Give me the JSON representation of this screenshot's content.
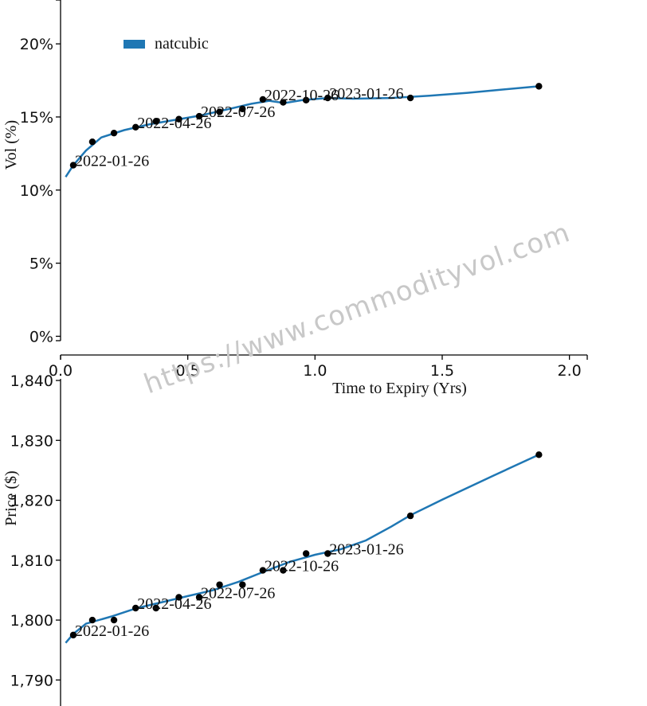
{
  "chart_data": [
    {
      "type": "line",
      "xlabel": "Time to Expiry (Yrs)",
      "ylabel": "Vol (%)",
      "xlim": [
        0,
        2.07
      ],
      "ylim": [
        -0.3,
        23
      ],
      "x_ticks": [
        0,
        0.5,
        1.0,
        1.5,
        2.0
      ],
      "x_tick_labels": [
        "0.0",
        "0.5",
        "1.0",
        "1.5",
        "2.0"
      ],
      "y_ticks": [
        0,
        5,
        10,
        15,
        20
      ],
      "y_tick_labels": [
        "0%",
        "5%",
        "10%",
        "15%",
        "20%"
      ],
      "legend": {
        "placement": "top-left",
        "entries": [
          {
            "name": "natcubic",
            "color": "#1f77b4"
          }
        ]
      },
      "series": [
        {
          "name": "natcubic",
          "color": "#1f77b4",
          "x": [
            0.02,
            0.05,
            0.1,
            0.16,
            0.25,
            0.35,
            0.45,
            0.55,
            0.65,
            0.75,
            0.82,
            0.88,
            0.95,
            1.05,
            1.15,
            1.3,
            1.45,
            1.6,
            1.75,
            1.88
          ],
          "y": [
            10.9,
            11.7,
            12.7,
            13.6,
            14.1,
            14.5,
            14.8,
            15.1,
            15.5,
            15.9,
            16.1,
            15.95,
            16.15,
            16.3,
            16.25,
            16.3,
            16.45,
            16.65,
            16.9,
            17.1
          ]
        }
      ],
      "points": {
        "x": [
          0.05,
          0.125,
          0.21,
          0.295,
          0.375,
          0.465,
          0.545,
          0.625,
          0.715,
          0.795,
          0.875,
          0.965,
          1.05,
          1.375,
          1.88
        ],
        "y": [
          11.7,
          13.3,
          13.9,
          14.3,
          14.7,
          14.85,
          15.05,
          15.35,
          15.55,
          16.2,
          16.0,
          16.15,
          16.3,
          16.3,
          17.1
        ]
      },
      "annotations": [
        {
          "text": "2022-01-26",
          "x": 0.05,
          "y": 11.7
        },
        {
          "text": "2022-04-26",
          "x": 0.295,
          "y": 14.3
        },
        {
          "text": "2022-07-26",
          "x": 0.545,
          "y": 15.05
        },
        {
          "text": "2022-10-26",
          "x": 0.795,
          "y": 16.2
        },
        {
          "text": "2023-01-26",
          "x": 1.05,
          "y": 16.3
        }
      ]
    },
    {
      "type": "line",
      "xlabel": "",
      "ylabel": "Price ($)",
      "xlim": [
        0,
        2.07
      ],
      "ylim": [
        1783,
        1840
      ],
      "y_ticks": [
        1790,
        1800,
        1810,
        1820,
        1830,
        1840
      ],
      "y_tick_labels": [
        "1,790",
        "1,800",
        "1,810",
        "1,820",
        "1,830",
        "1,840"
      ],
      "series": [
        {
          "color": "#1f77b4",
          "x": [
            0.02,
            0.05,
            0.1,
            0.2,
            0.3,
            0.4,
            0.5,
            0.6,
            0.7,
            0.8,
            0.9,
            1.0,
            1.1,
            1.2,
            1.3,
            1.375,
            1.5,
            1.7,
            1.88
          ],
          "y": [
            1796.2,
            1797.7,
            1799.4,
            1800.6,
            1802.0,
            1803.0,
            1804.0,
            1805.0,
            1806.4,
            1808.1,
            1809.7,
            1810.9,
            1811.8,
            1813.3,
            1815.6,
            1817.5,
            1820.1,
            1824.1,
            1827.6
          ]
        }
      ],
      "points": {
        "x": [
          0.05,
          0.125,
          0.21,
          0.295,
          0.375,
          0.465,
          0.545,
          0.625,
          0.715,
          0.795,
          0.875,
          0.965,
          1.05,
          1.375,
          1.88
        ],
        "y": [
          1797.5,
          1800.0,
          1800.0,
          1802.0,
          1802.0,
          1803.8,
          1803.8,
          1805.9,
          1805.9,
          1808.3,
          1808.3,
          1811.1,
          1811.1,
          1817.4,
          1827.6
        ]
      },
      "annotations": [
        {
          "text": "2022-01-26",
          "x": 0.05,
          "y": 1797.5
        },
        {
          "text": "2022-04-26",
          "x": 0.295,
          "y": 1802.0
        },
        {
          "text": "2022-07-26",
          "x": 0.545,
          "y": 1803.8
        },
        {
          "text": "2022-10-26",
          "x": 0.795,
          "y": 1808.3
        },
        {
          "text": "2023-01-26",
          "x": 1.05,
          "y": 1811.1
        }
      ]
    }
  ],
  "watermark": "https://www.commodityvol.com"
}
